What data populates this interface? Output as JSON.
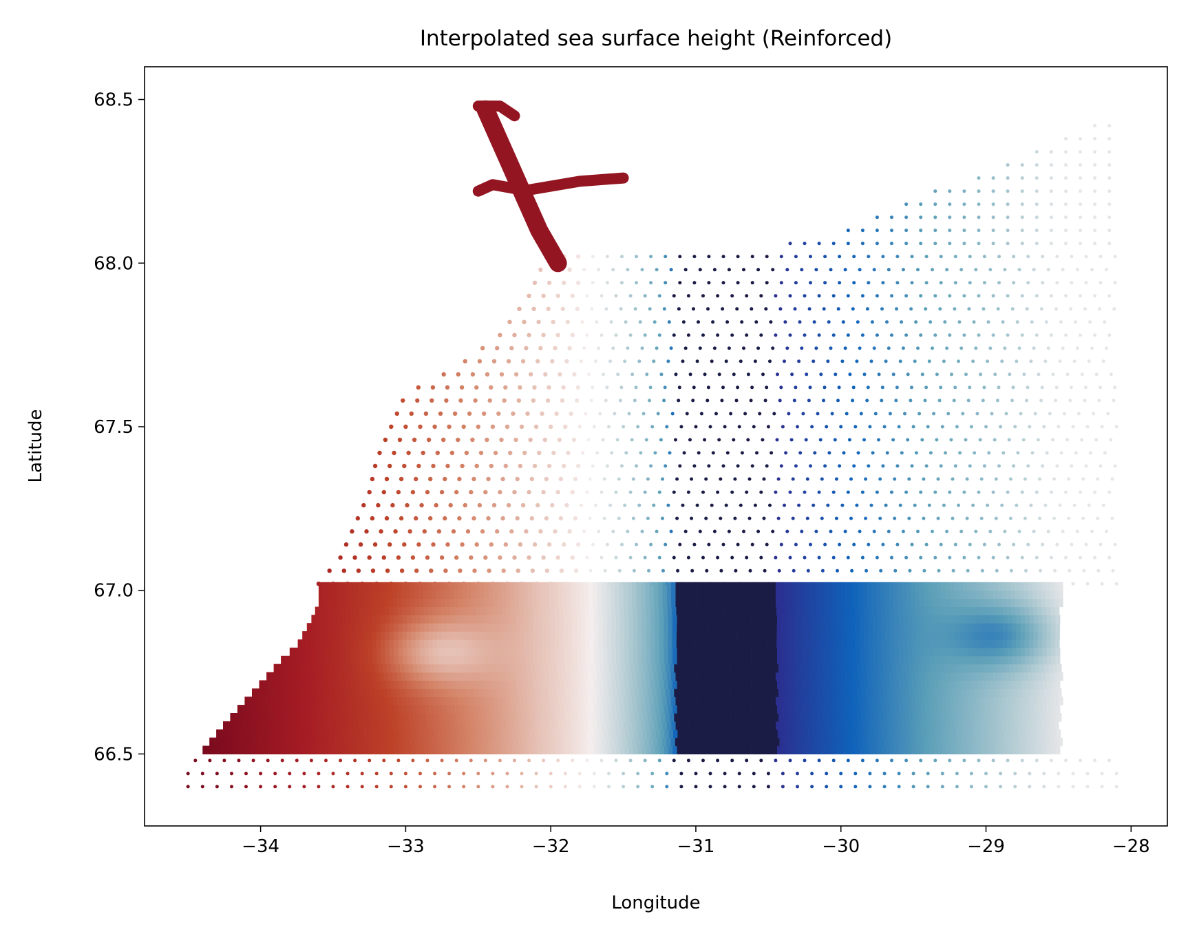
{
  "chart_data": {
    "type": "scatter",
    "title": "Interpolated sea surface height (Reinforced)",
    "xlabel": "Longitude",
    "ylabel": "Latitude",
    "xlim": [
      -34.8,
      -27.75
    ],
    "ylim": [
      66.28,
      68.6
    ],
    "xticks": [
      -34,
      -33,
      -32,
      -31,
      -30,
      -29,
      -28
    ],
    "xtick_labels": [
      "−34",
      "−33",
      "−32",
      "−31",
      "−30",
      "−29",
      "−28"
    ],
    "yticks": [
      66.5,
      67.0,
      67.5,
      68.0,
      68.5
    ],
    "ytick_labels": [
      "66.5",
      "67.0",
      "67.5",
      "68.0",
      "68.5"
    ],
    "grid": false,
    "legend": "none",
    "colormap": [
      "#7a0a1e",
      "#a51c24",
      "#bd4228",
      "#d48468",
      "#e5c0b4",
      "#f5eeee",
      "#a8c6cf",
      "#5b9fb8",
      "#0f62ba",
      "#2b2f8f",
      "#1b1c46"
    ],
    "dense_block": {
      "lon": [
        -34.4,
        -28.5
      ],
      "lat": [
        66.5,
        67.0
      ],
      "west_edge": [
        [
          66.5,
          -34.4
        ],
        [
          66.58,
          -34.25
        ],
        [
          66.63,
          -34.15
        ],
        [
          66.68,
          -34.05
        ],
        [
          66.73,
          -33.95
        ],
        [
          66.78,
          -33.85
        ],
        [
          66.82,
          -33.75
        ],
        [
          66.86,
          -33.7
        ],
        [
          66.9,
          -33.65
        ],
        [
          66.95,
          -33.6
        ],
        [
          67.0,
          -33.6
        ]
      ]
    },
    "sparse_grid": {
      "lon_step": 0.1,
      "lat_step": 0.04,
      "rows": [
        {
          "lat": 66.4,
          "lon": [
            -34.5,
            -28.1
          ]
        },
        {
          "lat": 66.44,
          "lon": [
            -34.5,
            -28.1
          ]
        },
        {
          "lat": 66.48,
          "lon": [
            -34.45,
            -28.1
          ]
        }
      ],
      "upper_west_edge": [
        [
          67.02,
          -33.6
        ],
        [
          67.1,
          -33.45
        ],
        [
          67.2,
          -33.35
        ],
        [
          67.3,
          -33.25
        ],
        [
          67.4,
          -33.2
        ],
        [
          67.5,
          -33.1
        ],
        [
          67.6,
          -33.0
        ],
        [
          67.68,
          -32.65
        ],
        [
          67.78,
          -32.35
        ],
        [
          67.9,
          -32.15
        ],
        [
          68.0,
          -32.05
        ],
        [
          68.05,
          -31.95
        ]
      ],
      "north_edge": [
        [
          -31.7,
          68.05
        ],
        [
          -31.0,
          68.05
        ],
        [
          -30.5,
          68.05
        ],
        [
          -30.0,
          68.1
        ],
        [
          -29.5,
          68.2
        ],
        [
          -29.0,
          68.28
        ],
        [
          -28.5,
          68.38
        ],
        [
          -28.2,
          68.44
        ]
      ]
    },
    "fjord": {
      "trunk": [
        [
          -32.45,
          68.47
        ],
        [
          -32.3,
          68.32
        ],
        [
          -32.18,
          68.2
        ],
        [
          -32.08,
          68.1
        ],
        [
          -31.95,
          68.0
        ]
      ],
      "east_branch": [
        [
          -32.2,
          68.22
        ],
        [
          -31.8,
          68.25
        ],
        [
          -31.5,
          68.26
        ]
      ],
      "west_branch": [
        [
          -32.15,
          68.22
        ],
        [
          -32.4,
          68.24
        ],
        [
          -32.5,
          68.22
        ]
      ],
      "north_lobe": [
        [
          -32.5,
          68.48
        ],
        [
          -32.35,
          68.48
        ],
        [
          -32.25,
          68.45
        ]
      ]
    },
    "field_features": {
      "warm_centers": [
        [
          -32.8,
          66.8
        ],
        [
          -28.9,
          66.85
        ],
        [
          -31.7,
          67.7
        ]
      ],
      "cold_core": [
        -30.8,
        66.75
      ],
      "cold_core_width": 0.35,
      "front": [
        [
          -32.25,
          66.5
        ],
        [
          -32.3,
          66.75
        ],
        [
          -32.3,
          67.0
        ],
        [
          -32.1,
          67.2
        ],
        [
          -31.6,
          67.45
        ],
        [
          -31.1,
          67.6
        ],
        [
          -30.2,
          67.75
        ],
        [
          -29.0,
          67.95
        ],
        [
          -28.1,
          68.1
        ]
      ]
    }
  }
}
